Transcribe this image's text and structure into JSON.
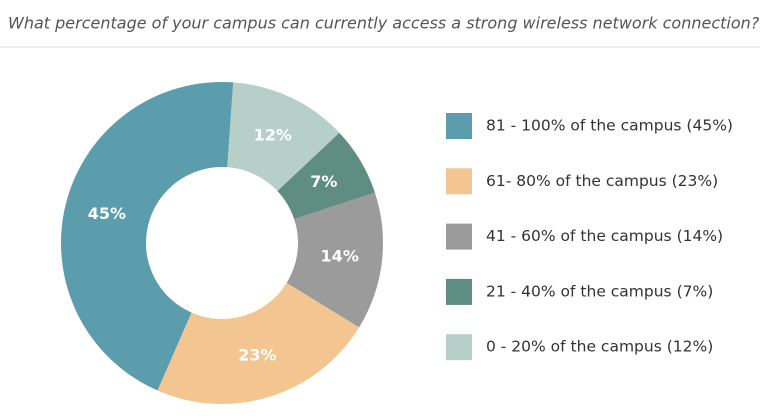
{
  "chart_data": {
    "type": "donut",
    "title": "What percentage of your campus can currently access a strong wireless network connection?",
    "categories": [
      "81 - 100% of the campus (45%)",
      "61- 80% of the campus (23%)",
      "41 - 60% of the campus (14%)",
      "21 - 40% of the campus (7%)",
      "0 - 20% of the campus (12%)"
    ],
    "values": [
      45,
      23,
      14,
      7,
      12
    ],
    "value_labels": [
      "45%",
      "23%",
      "14%",
      "7%",
      "12%"
    ],
    "colors": [
      "#5b9cad",
      "#f3c590",
      "#9b9b9b",
      "#5f8d81",
      "#b6cfc8"
    ]
  }
}
